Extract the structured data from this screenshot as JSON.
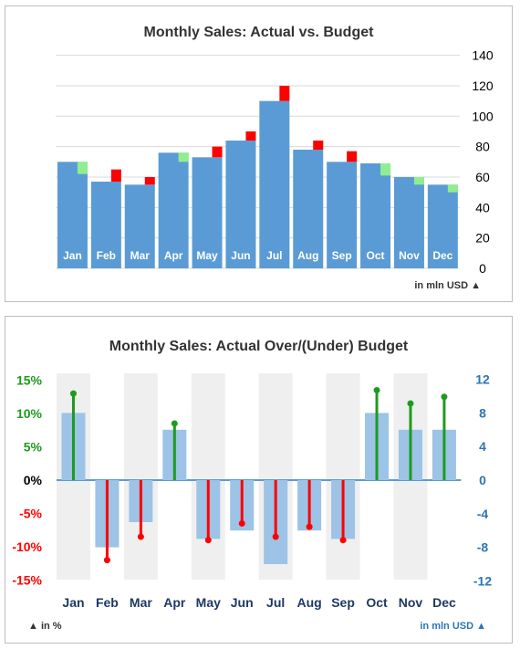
{
  "colors": {
    "bar": "#5b9bd5",
    "bar_light": "#9dc3e6",
    "over": "#ff0000",
    "under_good": "#90ee90",
    "grid": "#d9d9d9",
    "band": "#efefef",
    "positive": "#1e9b1e",
    "negative": "#ff0000",
    "right_axis": "#2e75b6",
    "month_text": "#1f3864"
  },
  "chart1_title": "Monthly Sales: Actual vs. Budget",
  "chart1_note": "in mln USD ▲",
  "chart2_title": "Monthly Sales: Actual Over/(Under) Budget",
  "chart2_note_left": "▲ in %",
  "chart2_note_right": "in mln USD ▲",
  "chart_data": [
    {
      "type": "bar",
      "title": "Monthly Sales: Actual vs. Budget",
      "categories": [
        "Jan",
        "Feb",
        "Mar",
        "Apr",
        "May",
        "Jun",
        "Jul",
        "Aug",
        "Sep",
        "Oct",
        "Nov",
        "Dec"
      ],
      "series": [
        {
          "values": [
            70,
            57,
            55,
            76,
            73,
            84,
            110,
            78,
            70,
            69,
            60,
            55
          ]
        },
        {
          "values": [
            62,
            65,
            60,
            70,
            80,
            90,
            120,
            84,
            77,
            61,
            55,
            50
          ]
        }
      ],
      "ylim": [
        0,
        140
      ],
      "yticks": [
        0,
        20,
        40,
        60,
        80,
        100,
        120,
        140
      ],
      "axis_position": "right",
      "grid": true,
      "unit_note": "in mln USD"
    },
    {
      "type": "bar",
      "title": "Monthly Sales: Actual Over/(Under) Budget",
      "categories": [
        "Jan",
        "Feb",
        "Mar",
        "Apr",
        "May",
        "Jun",
        "Jul",
        "Aug",
        "Sep",
        "Oct",
        "Nov",
        "Dec"
      ],
      "series": [
        {
          "axis": "right",
          "unit": "mln USD",
          "values": [
            8,
            -8,
            -5,
            6,
            -7,
            -6,
            -10,
            -6,
            -7,
            8,
            6,
            6
          ]
        },
        {
          "axis": "left",
          "unit": "%",
          "values": [
            13.0,
            -12.0,
            -8.5,
            8.5,
            -9.0,
            -6.5,
            -8.5,
            -7.0,
            -9.0,
            13.5,
            11.5,
            12.5
          ]
        }
      ],
      "left_ylim": [
        -15,
        15
      ],
      "left_yticks": [
        15,
        10,
        5,
        0,
        -5,
        -10,
        -15
      ],
      "left_ytick_labels": [
        "15%",
        "10%",
        "5%",
        "0%",
        "-5%",
        "-10%",
        "-15%"
      ],
      "right_ylim": [
        -12,
        12
      ],
      "right_yticks": [
        12,
        8,
        4,
        0,
        -4,
        -8,
        -12
      ],
      "grid": false
    }
  ]
}
